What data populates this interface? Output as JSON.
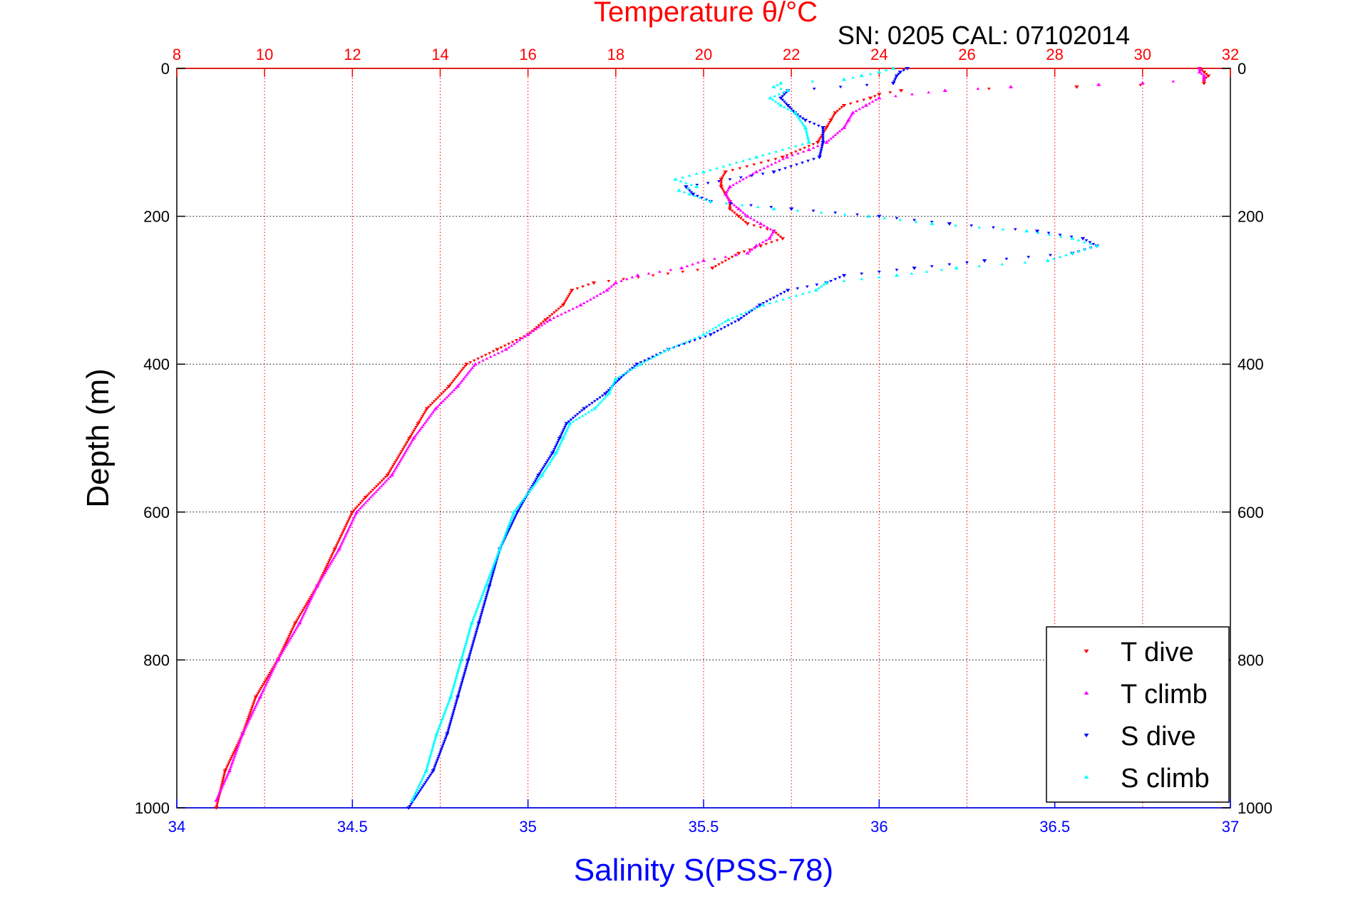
{
  "chart_data": {
    "type": "scatter",
    "title": "Temperature θ/°C",
    "subtitle": "SN: 0205  CAL: 07102014",
    "ylabel": "Depth (m)",
    "xlabel_bottom": "Salinity S(PSS-78)",
    "ylim": [
      1000,
      0
    ],
    "y_ticks": [
      0,
      200,
      400,
      600,
      800,
      1000
    ],
    "temperature_axis": {
      "range": [
        8,
        32
      ],
      "ticks": [
        8,
        10,
        12,
        14,
        16,
        18,
        20,
        22,
        24,
        26,
        28,
        30,
        32
      ]
    },
    "salinity_axis": {
      "range": [
        34,
        37
      ],
      "ticks": [
        34,
        34.5,
        35,
        35.5,
        36,
        36.5,
        37
      ]
    },
    "grid": true,
    "legend_position": "bottom-right",
    "colors": {
      "temperature_axis": "#ff0000",
      "salinity_axis": "#0000ff",
      "T_dive": "#ff0000",
      "T_climb": "#ff00ff",
      "S_dive": "#0000ff",
      "S_climb": "#00ffff",
      "grid": "#000000"
    },
    "series": [
      {
        "name": "T dive",
        "axis": "temperature",
        "marker": "down-triangle",
        "color": "#ff0000",
        "depth": [
          0,
          5,
          10,
          15,
          20,
          25,
          30,
          35,
          40,
          50,
          60,
          70,
          80,
          100,
          120,
          140,
          150,
          160,
          170,
          180,
          190,
          200,
          210,
          220,
          230,
          240,
          250,
          270,
          290,
          300,
          320,
          340,
          360,
          380,
          400,
          430,
          460,
          480,
          500,
          550,
          580,
          600,
          650,
          700,
          750,
          800,
          850,
          900,
          950,
          1000
        ],
        "temp": [
          31.3,
          31.4,
          31.5,
          31.4,
          31.4,
          28.5,
          24.5,
          24.0,
          23.8,
          23.2,
          23.0,
          22.9,
          22.8,
          22.6,
          21.8,
          20.5,
          20.4,
          20.4,
          20.5,
          20.6,
          20.6,
          20.8,
          21.0,
          21.6,
          21.8,
          21.3,
          20.8,
          20.2,
          17.5,
          17.0,
          16.8,
          16.4,
          16.0,
          15.3,
          14.6,
          14.2,
          13.7,
          13.5,
          13.3,
          12.8,
          12.3,
          12.0,
          11.6,
          11.2,
          10.7,
          10.3,
          9.8,
          9.5,
          9.1,
          8.9
        ]
      },
      {
        "name": "T climb",
        "axis": "temperature",
        "marker": "up-triangle",
        "color": "#ff00ff",
        "depth": [
          0,
          5,
          10,
          15,
          20,
          22,
          25,
          30,
          40,
          50,
          60,
          70,
          80,
          100,
          110,
          120,
          140,
          160,
          170,
          180,
          190,
          200,
          210,
          220,
          230,
          240,
          250,
          260,
          270,
          280,
          290,
          300,
          320,
          340,
          360,
          380,
          400,
          430,
          460,
          500,
          550,
          600,
          650,
          700,
          750,
          800,
          850,
          900,
          950,
          990
        ],
        "temp": [
          31.3,
          31.3,
          31.4,
          31.4,
          30.0,
          29.0,
          27.0,
          25.5,
          24.0,
          23.7,
          23.4,
          23.3,
          23.2,
          22.8,
          22.4,
          21.9,
          21.2,
          20.6,
          20.5,
          20.6,
          20.8,
          21.0,
          21.3,
          21.6,
          21.5,
          21.2,
          21.0,
          20.0,
          19.5,
          18.5,
          18.0,
          17.8,
          17.2,
          16.5,
          16.0,
          15.5,
          14.8,
          14.4,
          13.9,
          13.4,
          12.9,
          12.1,
          11.7,
          11.2,
          10.8,
          10.3,
          9.9,
          9.5,
          9.2,
          8.9
        ]
      },
      {
        "name": "S dive",
        "axis": "salinity",
        "marker": "down-triangle",
        "color": "#0000ff",
        "depth": [
          0,
          5,
          10,
          20,
          30,
          40,
          50,
          60,
          70,
          80,
          100,
          120,
          140,
          160,
          170,
          180,
          190,
          200,
          210,
          220,
          230,
          240,
          250,
          260,
          270,
          280,
          290,
          300,
          320,
          340,
          360,
          380,
          400,
          420,
          440,
          460,
          480,
          500,
          520,
          550,
          600,
          650,
          700,
          750,
          800,
          850,
          900,
          950,
          1000
        ],
        "sal": [
          36.08,
          36.06,
          36.05,
          36.04,
          35.74,
          35.72,
          35.74,
          35.76,
          35.79,
          35.84,
          35.84,
          35.83,
          35.7,
          35.45,
          35.47,
          35.52,
          35.75,
          36.0,
          36.2,
          36.45,
          36.58,
          36.62,
          36.55,
          36.3,
          36.1,
          35.9,
          35.85,
          35.74,
          35.66,
          35.6,
          35.52,
          35.4,
          35.31,
          35.26,
          35.22,
          35.16,
          35.11,
          35.09,
          35.07,
          35.03,
          34.97,
          34.92,
          34.89,
          34.86,
          34.83,
          34.8,
          34.77,
          34.73,
          34.66
        ]
      },
      {
        "name": "S climb",
        "axis": "salinity",
        "marker": "up-triangle",
        "color": "#00ffff",
        "depth": [
          0,
          5,
          10,
          15,
          20,
          25,
          30,
          40,
          50,
          60,
          80,
          100,
          120,
          140,
          150,
          160,
          165,
          170,
          180,
          190,
          200,
          210,
          220,
          230,
          240,
          250,
          260,
          270,
          280,
          290,
          300,
          320,
          340,
          360,
          380,
          400,
          420,
          440,
          460,
          480,
          500,
          520,
          550,
          600,
          650,
          700,
          750,
          800,
          850,
          900,
          950,
          990
        ],
        "sal": [
          36.04,
          36.0,
          35.95,
          35.9,
          35.72,
          35.7,
          35.74,
          35.69,
          35.72,
          35.76,
          35.79,
          35.8,
          35.65,
          35.5,
          35.42,
          35.48,
          35.43,
          35.46,
          35.52,
          35.7,
          35.97,
          36.15,
          36.42,
          36.55,
          36.62,
          36.55,
          36.48,
          36.22,
          36.05,
          35.85,
          35.82,
          35.67,
          35.57,
          35.5,
          35.4,
          35.32,
          35.25,
          35.23,
          35.19,
          35.12,
          35.1,
          35.08,
          35.04,
          34.96,
          34.92,
          34.88,
          34.84,
          34.81,
          34.78,
          34.74,
          34.71,
          34.67
        ]
      }
    ]
  }
}
